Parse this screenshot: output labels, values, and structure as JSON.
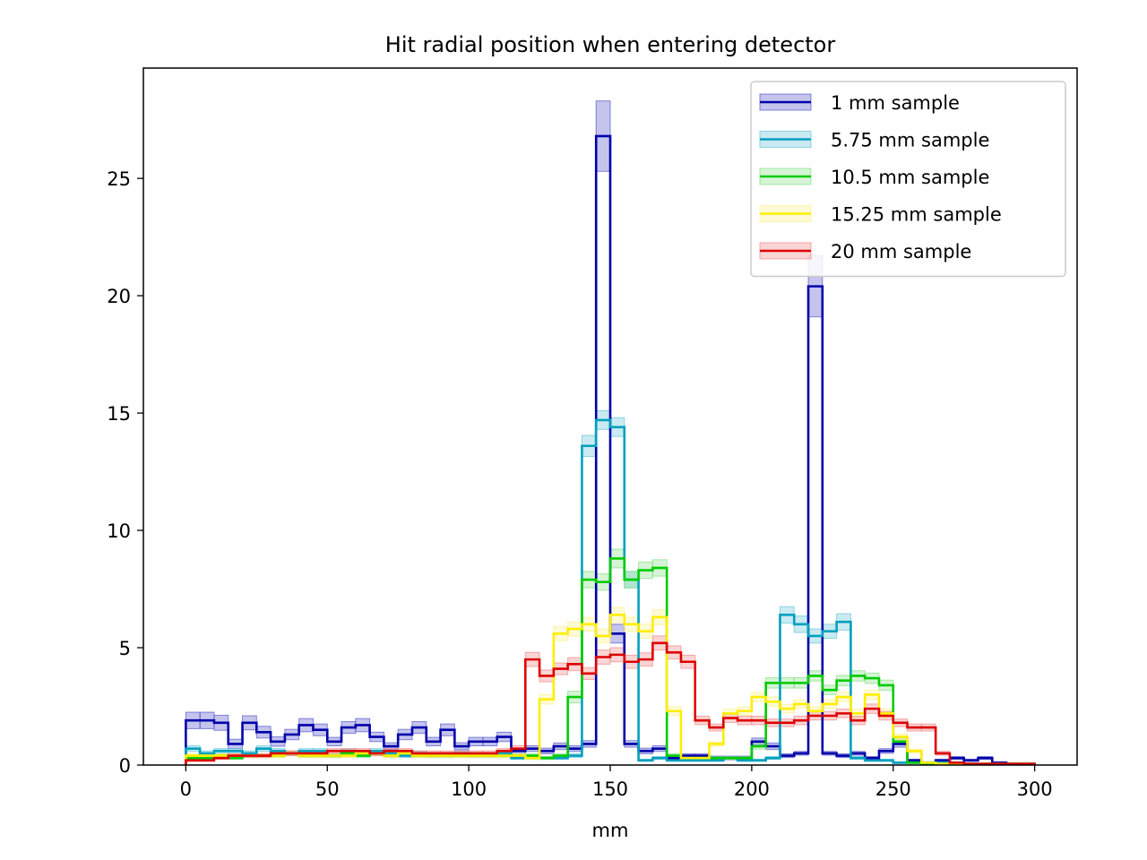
{
  "chart_data": {
    "type": "histogram",
    "title": "Hit radial position when entering detector",
    "xlabel": "mm",
    "ylabel": "",
    "xlim": [
      -15,
      315
    ],
    "ylim": [
      0,
      29.7
    ],
    "x_ticks": [
      0,
      50,
      100,
      150,
      200,
      250,
      300
    ],
    "y_ticks": [
      0,
      5,
      10,
      15,
      20,
      25
    ],
    "bin_width": 5,
    "bin_start": 0,
    "legend_position": "top-right",
    "grid": false,
    "series": [
      {
        "name": "1 mm sample",
        "color": "#0000aa",
        "band_color": "#5555cc",
        "values": [
          1.9,
          1.9,
          1.8,
          0.9,
          1.8,
          1.4,
          1.0,
          1.3,
          1.7,
          1.5,
          1.0,
          1.6,
          1.7,
          1.2,
          0.8,
          1.3,
          1.6,
          1.0,
          1.5,
          0.8,
          1.0,
          1.0,
          1.2,
          0.6,
          0.7,
          0.6,
          0.8,
          0.7,
          0.9,
          26.8,
          5.6,
          0.9,
          0.6,
          0.7,
          0.3,
          0.4,
          0.4,
          0.3,
          0.3,
          0.3,
          1.0,
          0.8,
          0.4,
          0.5,
          20.4,
          0.5,
          0.4,
          0.5,
          0.3,
          0.6,
          0.9,
          0.2,
          0.1,
          0.2,
          0.3,
          0.2,
          0.3,
          0.1,
          0.05,
          0.05
        ],
        "err": [
          0.35,
          0.35,
          0.32,
          0.2,
          0.3,
          0.25,
          0.2,
          0.22,
          0.28,
          0.25,
          0.18,
          0.25,
          0.28,
          0.2,
          0.15,
          0.22,
          0.25,
          0.18,
          0.25,
          0.15,
          0.18,
          0.18,
          0.2,
          0.12,
          0.12,
          0.12,
          0.14,
          0.12,
          0.14,
          1.5,
          0.4,
          0.14,
          0.12,
          0.12,
          0.08,
          0.08,
          0.08,
          0.08,
          0.08,
          0.08,
          0.15,
          0.14,
          0.08,
          0.08,
          1.3,
          0.08,
          0.08,
          0.08,
          0.06,
          0.1,
          0.14,
          0.05,
          0.04,
          0.05,
          0.06,
          0.05,
          0.06,
          0.04,
          0.03,
          0.03
        ]
      },
      {
        "name": "5.75 mm sample",
        "color": "#00a0bf",
        "band_color": "#66c4d8",
        "values": [
          0.7,
          0.5,
          0.6,
          0.6,
          0.5,
          0.7,
          0.6,
          0.5,
          0.6,
          0.6,
          0.4,
          0.6,
          0.5,
          0.6,
          0.5,
          0.4,
          0.5,
          0.4,
          0.4,
          0.5,
          0.4,
          0.4,
          0.5,
          0.3,
          0.3,
          0.3,
          0.3,
          0.4,
          13.6,
          14.7,
          14.4,
          7.9,
          0.2,
          0.3,
          0.2,
          0.2,
          0.2,
          0.2,
          0.3,
          0.2,
          0.2,
          0.3,
          6.4,
          6.0,
          5.5,
          5.7,
          6.1,
          0.3,
          0.2,
          0.2,
          0.1,
          0.1,
          0.1,
          0.1,
          0.1,
          0.05,
          0.05,
          0.05,
          0.05,
          0.05
        ],
        "err": [
          0.12,
          0.1,
          0.1,
          0.1,
          0.1,
          0.12,
          0.1,
          0.1,
          0.1,
          0.1,
          0.08,
          0.1,
          0.1,
          0.1,
          0.1,
          0.08,
          0.1,
          0.08,
          0.08,
          0.1,
          0.08,
          0.08,
          0.1,
          0.06,
          0.06,
          0.06,
          0.06,
          0.08,
          0.45,
          0.4,
          0.4,
          0.35,
          0.05,
          0.06,
          0.05,
          0.05,
          0.05,
          0.05,
          0.06,
          0.05,
          0.05,
          0.06,
          0.35,
          0.35,
          0.3,
          0.3,
          0.35,
          0.06,
          0.05,
          0.05,
          0.04,
          0.04,
          0.04,
          0.04,
          0.04,
          0.03,
          0.03,
          0.03,
          0.03,
          0.03
        ]
      },
      {
        "name": "10.5 mm sample",
        "color": "#00cc00",
        "band_color": "#88e088",
        "values": [
          0.3,
          0.3,
          0.4,
          0.3,
          0.4,
          0.4,
          0.4,
          0.5,
          0.4,
          0.4,
          0.4,
          0.5,
          0.4,
          0.5,
          0.4,
          0.5,
          0.4,
          0.4,
          0.4,
          0.4,
          0.4,
          0.4,
          0.4,
          0.4,
          0.4,
          0.3,
          0.4,
          2.9,
          7.9,
          7.8,
          8.8,
          7.9,
          8.3,
          8.4,
          0.4,
          0.3,
          0.3,
          0.3,
          0.3,
          0.3,
          0.8,
          3.5,
          3.5,
          3.5,
          3.8,
          3.2,
          3.6,
          3.8,
          3.7,
          3.4,
          1.0,
          0.1,
          0.05,
          0.05,
          0.05,
          0.05,
          0.05,
          0.05,
          0.05,
          0.05
        ],
        "err": [
          0.06,
          0.06,
          0.08,
          0.06,
          0.08,
          0.08,
          0.08,
          0.1,
          0.08,
          0.08,
          0.08,
          0.1,
          0.08,
          0.1,
          0.08,
          0.1,
          0.08,
          0.08,
          0.08,
          0.08,
          0.08,
          0.08,
          0.08,
          0.08,
          0.08,
          0.06,
          0.08,
          0.25,
          0.35,
          0.35,
          0.4,
          0.35,
          0.35,
          0.35,
          0.08,
          0.06,
          0.06,
          0.06,
          0.06,
          0.06,
          0.12,
          0.22,
          0.22,
          0.22,
          0.22,
          0.2,
          0.22,
          0.22,
          0.22,
          0.22,
          0.12,
          0.03,
          0.02,
          0.02,
          0.02,
          0.02,
          0.02,
          0.02,
          0.02,
          0.02
        ]
      },
      {
        "name": "15.25 mm sample",
        "color": "#ffee00",
        "band_color": "#fff08a",
        "values": [
          0.4,
          0.4,
          0.4,
          0.4,
          0.4,
          0.4,
          0.4,
          0.5,
          0.4,
          0.4,
          0.4,
          0.4,
          0.5,
          0.5,
          0.4,
          0.5,
          0.4,
          0.4,
          0.4,
          0.4,
          0.4,
          0.4,
          0.4,
          0.4,
          0.3,
          2.8,
          5.6,
          5.8,
          6.0,
          5.5,
          6.4,
          6.0,
          5.7,
          6.3,
          2.3,
          0.3,
          0.3,
          0.9,
          2.2,
          2.3,
          2.9,
          2.7,
          2.4,
          2.6,
          2.3,
          2.6,
          2.9,
          2.2,
          3.0,
          2.2,
          1.2,
          0.6,
          0.1,
          0.05,
          0.05,
          0.05,
          0.05,
          0.05,
          0.05,
          0.05
        ],
        "err": [
          0.08,
          0.08,
          0.08,
          0.08,
          0.08,
          0.08,
          0.08,
          0.1,
          0.08,
          0.08,
          0.08,
          0.08,
          0.1,
          0.1,
          0.08,
          0.1,
          0.08,
          0.08,
          0.08,
          0.08,
          0.08,
          0.08,
          0.08,
          0.08,
          0.06,
          0.2,
          0.3,
          0.3,
          0.3,
          0.3,
          0.32,
          0.3,
          0.3,
          0.32,
          0.18,
          0.06,
          0.06,
          0.1,
          0.18,
          0.18,
          0.2,
          0.2,
          0.18,
          0.18,
          0.18,
          0.18,
          0.2,
          0.18,
          0.2,
          0.18,
          0.12,
          0.08,
          0.03,
          0.02,
          0.02,
          0.02,
          0.02,
          0.02,
          0.02,
          0.02
        ]
      },
      {
        "name": "20 mm sample",
        "color": "#dd0000",
        "band_color": "#f08888",
        "values": [
          0.2,
          0.2,
          0.3,
          0.4,
          0.4,
          0.4,
          0.5,
          0.5,
          0.5,
          0.5,
          0.6,
          0.6,
          0.6,
          0.5,
          0.6,
          0.6,
          0.5,
          0.5,
          0.5,
          0.5,
          0.5,
          0.5,
          0.6,
          0.7,
          4.5,
          3.8,
          4.1,
          4.3,
          3.9,
          4.6,
          4.7,
          4.4,
          4.5,
          5.2,
          4.8,
          4.4,
          1.9,
          1.6,
          2.0,
          1.9,
          1.9,
          1.8,
          1.8,
          1.9,
          2.1,
          2.1,
          2.2,
          1.9,
          2.4,
          2.1,
          1.8,
          1.6,
          1.6,
          0.5,
          0.1,
          0.05,
          0.05,
          0.05,
          0.05,
          0.05
        ],
        "err": [
          0.05,
          0.05,
          0.06,
          0.08,
          0.08,
          0.08,
          0.1,
          0.1,
          0.1,
          0.1,
          0.1,
          0.1,
          0.1,
          0.1,
          0.1,
          0.1,
          0.1,
          0.1,
          0.1,
          0.1,
          0.1,
          0.1,
          0.1,
          0.12,
          0.3,
          0.25,
          0.25,
          0.28,
          0.25,
          0.3,
          0.3,
          0.28,
          0.28,
          0.3,
          0.28,
          0.28,
          0.18,
          0.15,
          0.18,
          0.18,
          0.18,
          0.16,
          0.16,
          0.18,
          0.18,
          0.18,
          0.18,
          0.18,
          0.2,
          0.18,
          0.16,
          0.15,
          0.15,
          0.08,
          0.03,
          0.02,
          0.02,
          0.02,
          0.02,
          0.02
        ]
      }
    ]
  }
}
